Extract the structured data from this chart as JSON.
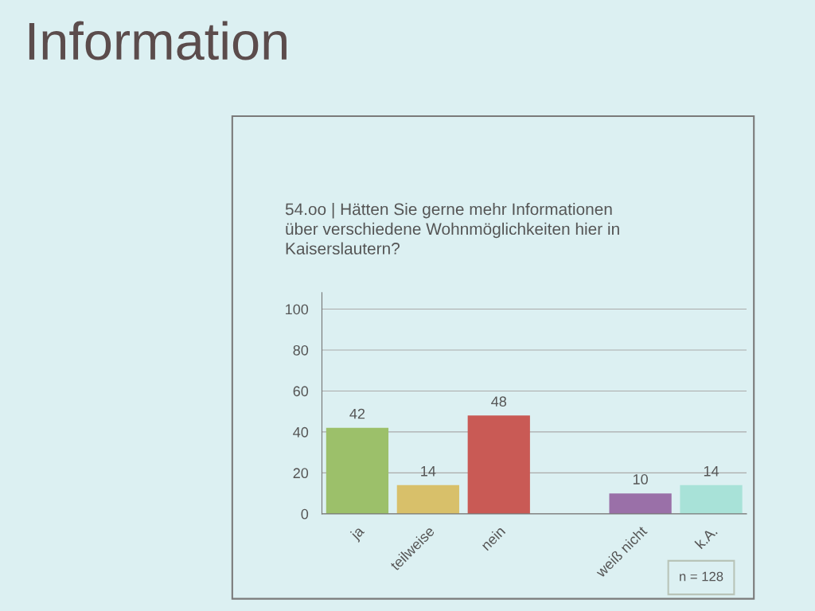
{
  "chart_data": {
    "type": "bar",
    "title": "Information",
    "subtitle": "54.oo | Hätten Sie gerne mehr Informationen\nüber verschiedene Wohnmöglichkeiten hier in\nKaiserslautern?",
    "categories": [
      "ja",
      "teilweise",
      "nein",
      null,
      "weiß nicht",
      "k.A."
    ],
    "values": [
      42,
      14,
      48,
      null,
      10,
      14
    ],
    "colors": [
      "#9cc06a",
      "#d8c06a",
      "#c95a55",
      "#ffffff",
      "#9a70a8",
      "#a8e2d8"
    ],
    "ylim": [
      0,
      108
    ],
    "yticks": [
      0,
      20,
      40,
      60,
      80,
      100
    ],
    "grid": "y",
    "data_labels": true,
    "annotations": [
      "n = 128"
    ]
  }
}
